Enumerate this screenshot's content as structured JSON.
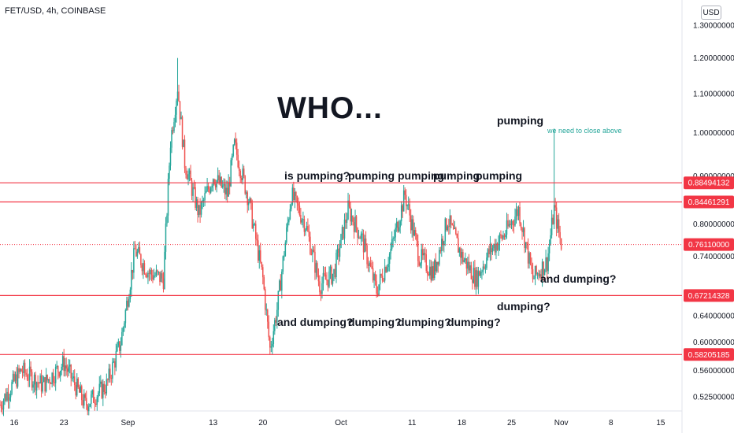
{
  "ticker": "FET/USD, 4h, COINBASE",
  "currency": "USD",
  "colors": {
    "up": "#26a69a",
    "down": "#ef5350",
    "level": "#f23645",
    "price": "#f23645"
  },
  "annotations": [
    {
      "text": "WHO...",
      "size": "big",
      "x": "Sep 22",
      "y": 1.065
    },
    {
      "text": "is pumping?",
      "size": "md",
      "x": "Sep 23",
      "y": 0.9
    },
    {
      "text": "pumping",
      "size": "md",
      "x": "Oct 2",
      "y": 0.9
    },
    {
      "text": "pumping",
      "size": "md",
      "x": "Oct 9",
      "y": 0.9
    },
    {
      "text": "pumping",
      "size": "md",
      "x": "Oct 14",
      "y": 0.9
    },
    {
      "text": "pumping",
      "size": "md",
      "x": "Oct 20",
      "y": 0.9
    },
    {
      "text": "pumping",
      "size": "md",
      "x": "Oct 23",
      "y": 1.03
    },
    {
      "text": "we need to close above",
      "size": "sm",
      "x": "Oct 30",
      "y": 1.005
    },
    {
      "text": "and dumping?",
      "size": "md",
      "x": "Oct 29",
      "y": 0.7
    },
    {
      "text": "and dumping?",
      "size": "md",
      "x": "Sep 22",
      "y": 0.63
    },
    {
      "text": "dumping?",
      "size": "md",
      "x": "Oct 2",
      "y": 0.63
    },
    {
      "text": "dumping?",
      "size": "md",
      "x": "Oct 9",
      "y": 0.63
    },
    {
      "text": "dumping?",
      "size": "md",
      "x": "Oct 16",
      "y": 0.63
    },
    {
      "text": "dumping?",
      "size": "md",
      "x": "Oct 23",
      "y": 0.655
    }
  ],
  "chart_data": {
    "type": "candlestick",
    "title": "FET/USD, 4h, COINBASE",
    "x_range": [
      "2021-08-14",
      "2021-11-18"
    ],
    "ylim": [
      0.5,
      1.3
    ],
    "y_scale": "log",
    "x_ticks": [
      {
        "date": "2021-08-16",
        "label": "16"
      },
      {
        "date": "2021-08-23",
        "label": "23"
      },
      {
        "date": "2021-09-01",
        "label": "Sep"
      },
      {
        "date": "2021-09-13",
        "label": "13"
      },
      {
        "date": "2021-09-20",
        "label": "20"
      },
      {
        "date": "2021-10-01",
        "label": "Oct"
      },
      {
        "date": "2021-10-11",
        "label": "11"
      },
      {
        "date": "2021-10-18",
        "label": "18"
      },
      {
        "date": "2021-10-25",
        "label": "25"
      },
      {
        "date": "2021-11-01",
        "label": "Nov"
      },
      {
        "date": "2021-11-08",
        "label": "8"
      },
      {
        "date": "2021-11-15",
        "label": "15"
      }
    ],
    "y_ticks": [
      "0.52500000",
      "0.56000000",
      "0.60000000",
      "0.64000000",
      "0.74000000",
      "0.80000000",
      "0.90000000",
      "1.00000000",
      "1.10000000",
      "1.20000000",
      "1.30000000"
    ],
    "levels": [
      {
        "value": 0.88494132,
        "label": "0.88494132"
      },
      {
        "value": 0.84461291,
        "label": "0.84461291"
      },
      {
        "value": 0.67214328,
        "label": "0.67214328"
      },
      {
        "value": 0.58205185,
        "label": "0.58205185"
      }
    ],
    "current_price": {
      "value": 0.7611,
      "label": "0.76110000"
    },
    "close_path": [
      {
        "date": "2021-08-14",
        "close": 0.515
      },
      {
        "date": "2021-08-17",
        "close": 0.56
      },
      {
        "date": "2021-08-20",
        "close": 0.54
      },
      {
        "date": "2021-08-23",
        "close": 0.57
      },
      {
        "date": "2021-08-26",
        "close": 0.515
      },
      {
        "date": "2021-08-29",
        "close": 0.54
      },
      {
        "date": "2021-08-31",
        "close": 0.6
      },
      {
        "date": "2021-09-02",
        "close": 0.75
      },
      {
        "date": "2021-09-04",
        "close": 0.71
      },
      {
        "date": "2021-09-06",
        "close": 0.7
      },
      {
        "date": "2021-09-07",
        "close": 0.98
      },
      {
        "date": "2021-09-08",
        "close": 1.12
      },
      {
        "date": "2021-09-09",
        "close": 0.93
      },
      {
        "date": "2021-09-11",
        "close": 0.82
      },
      {
        "date": "2021-09-13",
        "close": 0.9
      },
      {
        "date": "2021-09-15",
        "close": 0.86
      },
      {
        "date": "2021-09-16",
        "close": 0.97
      },
      {
        "date": "2021-09-18",
        "close": 0.85
      },
      {
        "date": "2021-09-20",
        "close": 0.7
      },
      {
        "date": "2021-09-21",
        "close": 0.59
      },
      {
        "date": "2021-09-22",
        "close": 0.65
      },
      {
        "date": "2021-09-24",
        "close": 0.86
      },
      {
        "date": "2021-09-26",
        "close": 0.8
      },
      {
        "date": "2021-09-28",
        "close": 0.69
      },
      {
        "date": "2021-09-30",
        "close": 0.71
      },
      {
        "date": "2021-10-02",
        "close": 0.83
      },
      {
        "date": "2021-10-04",
        "close": 0.77
      },
      {
        "date": "2021-10-06",
        "close": 0.68
      },
      {
        "date": "2021-10-08",
        "close": 0.75
      },
      {
        "date": "2021-10-10",
        "close": 0.86
      },
      {
        "date": "2021-10-12",
        "close": 0.74
      },
      {
        "date": "2021-10-14",
        "close": 0.71
      },
      {
        "date": "2021-10-16",
        "close": 0.81
      },
      {
        "date": "2021-10-18",
        "close": 0.74
      },
      {
        "date": "2021-10-20",
        "close": 0.7
      },
      {
        "date": "2021-10-22",
        "close": 0.75
      },
      {
        "date": "2021-10-24",
        "close": 0.78
      },
      {
        "date": "2021-10-26",
        "close": 0.83
      },
      {
        "date": "2021-10-28",
        "close": 0.7
      },
      {
        "date": "2021-10-30",
        "close": 0.73
      },
      {
        "date": "2021-10-31",
        "close": 0.83
      },
      {
        "date": "2021-11-01",
        "close": 0.761
      }
    ],
    "spikes": [
      {
        "date": "2021-09-08",
        "high": 1.2
      },
      {
        "date": "2021-10-31",
        "high": 1.01
      }
    ]
  }
}
